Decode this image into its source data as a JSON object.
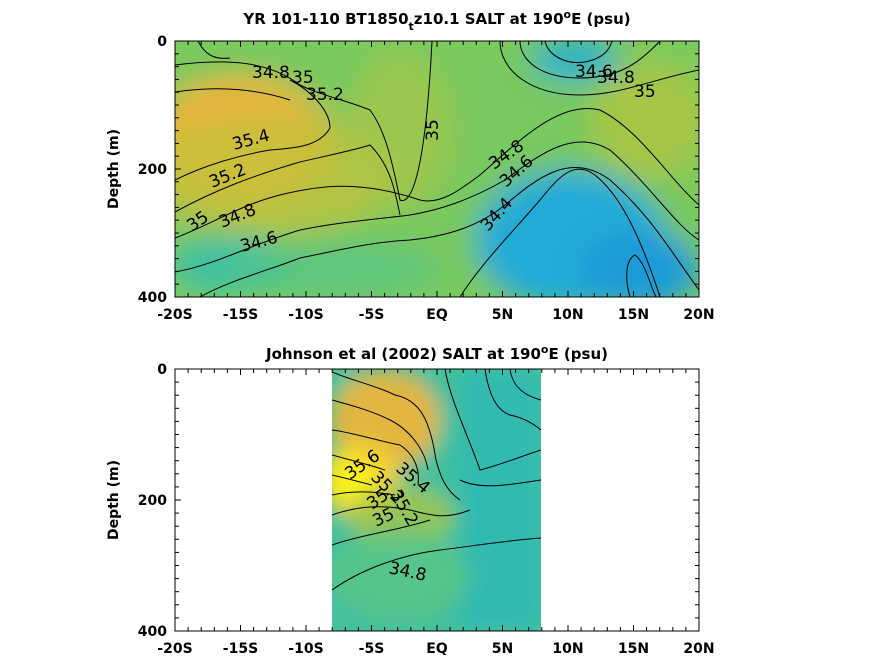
{
  "chart_data": [
    {
      "type": "heatmap",
      "title_main": "YR 101-110 BT1850",
      "title_sub": "t",
      "title_rest": "z10.1 SALT at 190",
      "title_sup": "o",
      "title_end": "E (psu)",
      "ylabel": "Depth (m)",
      "xticks": [
        "-20S",
        "-15S",
        "-10S",
        "-5S",
        "EQ",
        "5N",
        "10N",
        "15N",
        "20N"
      ],
      "xtick_values": [
        -20,
        -15,
        -10,
        -5,
        0,
        5,
        10,
        15,
        20
      ],
      "yticks": [
        "0",
        "200",
        "400"
      ],
      "ytick_values": [
        0,
        200,
        400
      ],
      "xlim": [
        -20,
        20
      ],
      "ylim": [
        0,
        400
      ],
      "contour_labels": [
        "34.8",
        "35",
        "35.2",
        "34.6",
        "34.8",
        "35",
        "35",
        "35.4",
        "35.2",
        "34.8",
        "34.6",
        "35",
        "34.8",
        "34.6",
        "34.4"
      ],
      "colormap": [
        "#1e9bd8",
        "#26b5c9",
        "#33bfa8",
        "#6cc96a",
        "#b5c83a",
        "#e7b83a",
        "#f5d32a",
        "#f9f50f"
      ]
    },
    {
      "type": "heatmap",
      "title_main": "Johnson et al (2002) SALT at 190",
      "title_sup": "o",
      "title_end": "E (psu)",
      "ylabel": "Depth (m)",
      "xticks": [
        "-20S",
        "-15S",
        "-10S",
        "-5S",
        "EQ",
        "5N",
        "10N",
        "15N",
        "20N"
      ],
      "xtick_values": [
        -20,
        -15,
        -10,
        -5,
        0,
        5,
        10,
        15,
        20
      ],
      "yticks": [
        "0",
        "200",
        "400"
      ],
      "ytick_values": [
        0,
        200,
        400
      ],
      "xlim": [
        -20,
        20
      ],
      "ylim": [
        0,
        400
      ],
      "data_xrange": [
        -8,
        8
      ],
      "contour_labels": [
        "34.8",
        "35",
        "35",
        "35.2",
        "35.6",
        "35.4",
        "35.2",
        "35",
        "34.8"
      ]
    }
  ]
}
